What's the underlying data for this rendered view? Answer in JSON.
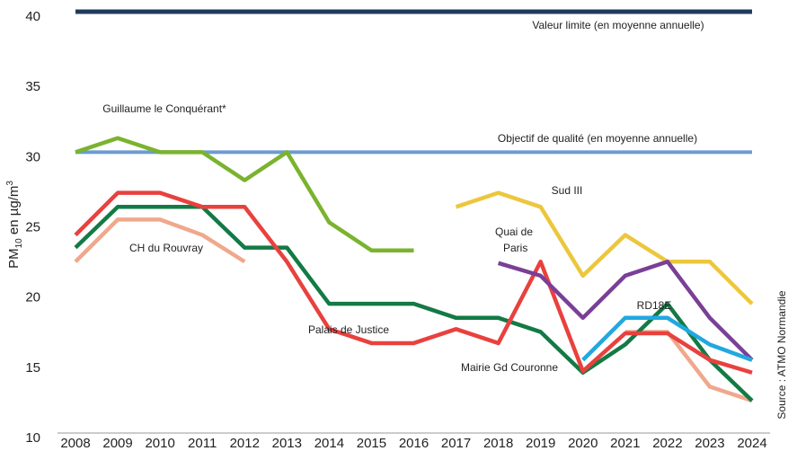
{
  "chart_data": {
    "type": "line",
    "y_label": {
      "main": "PM",
      "sub": "10",
      "mid": " en µg/m",
      "sup": "3"
    },
    "source": "Source : ATMO Normandie",
    "categories": [
      "2008",
      "2009",
      "2010",
      "2011",
      "2012",
      "2013",
      "2014",
      "2015",
      "2016",
      "2017",
      "2018",
      "2019",
      "2020",
      "2021",
      "2022",
      "2023",
      "2024"
    ],
    "ylim": [
      10,
      40
    ],
    "yticks": [
      10,
      15,
      20,
      25,
      30,
      35,
      40
    ],
    "reference_lines": [
      {
        "label": "Valeur limite (en moyenne annuelle)",
        "value": 40,
        "color": "#1f3b5a"
      },
      {
        "label": "Objectif de qualité (en moyenne annuelle)",
        "value": 30,
        "color": "#6d9bd1"
      }
    ],
    "series": [
      {
        "name": "Guillaume le Conquérant*",
        "color": "#7ab32e",
        "values": [
          30,
          31,
          30,
          30,
          28,
          30,
          25,
          23,
          23,
          null,
          null,
          null,
          null,
          null,
          null,
          null,
          null
        ]
      },
      {
        "name": "CH du Rouvray",
        "color": "#f0a88c",
        "values": [
          22.2,
          25.2,
          25.2,
          24.1,
          22.2,
          null,
          null,
          null,
          null,
          null,
          null,
          null,
          null,
          17.2,
          17.2,
          13.3,
          12.3
        ]
      },
      {
        "name": "Mairie Gd Couronne",
        "color": "#137a45",
        "values": [
          23.2,
          26.1,
          26.1,
          26.1,
          23.2,
          23.2,
          19.2,
          19.2,
          19.2,
          18.2,
          18.2,
          17.2,
          14.3,
          16.3,
          19.2,
          15.2,
          12.3
        ]
      },
      {
        "name": "Palais de Justice",
        "color": "#e8413e",
        "values": [
          24.1,
          27.1,
          27.1,
          26.1,
          26.1,
          22.2,
          17.4,
          16.4,
          16.4,
          17.4,
          16.4,
          22.2,
          14.4,
          17.1,
          17.1,
          15.2,
          14.3
        ]
      },
      {
        "name": "Sud III",
        "color": "#ecc73d",
        "values": [
          null,
          null,
          null,
          null,
          null,
          null,
          null,
          null,
          null,
          26.1,
          27.1,
          26.1,
          21.2,
          24.1,
          22.2,
          22.2,
          19.2
        ]
      },
      {
        "name": "Quai de Paris",
        "color": "#7a3f97",
        "values": [
          null,
          null,
          null,
          null,
          null,
          null,
          null,
          null,
          null,
          null,
          22.1,
          21.2,
          18.2,
          21.2,
          22.2,
          18.2,
          15.2
        ]
      },
      {
        "name": "RD18E",
        "color": "#21a8e0",
        "values": [
          null,
          null,
          null,
          null,
          null,
          null,
          null,
          null,
          null,
          null,
          null,
          null,
          15.2,
          18.2,
          18.2,
          16.3,
          15.2
        ]
      }
    ]
  }
}
